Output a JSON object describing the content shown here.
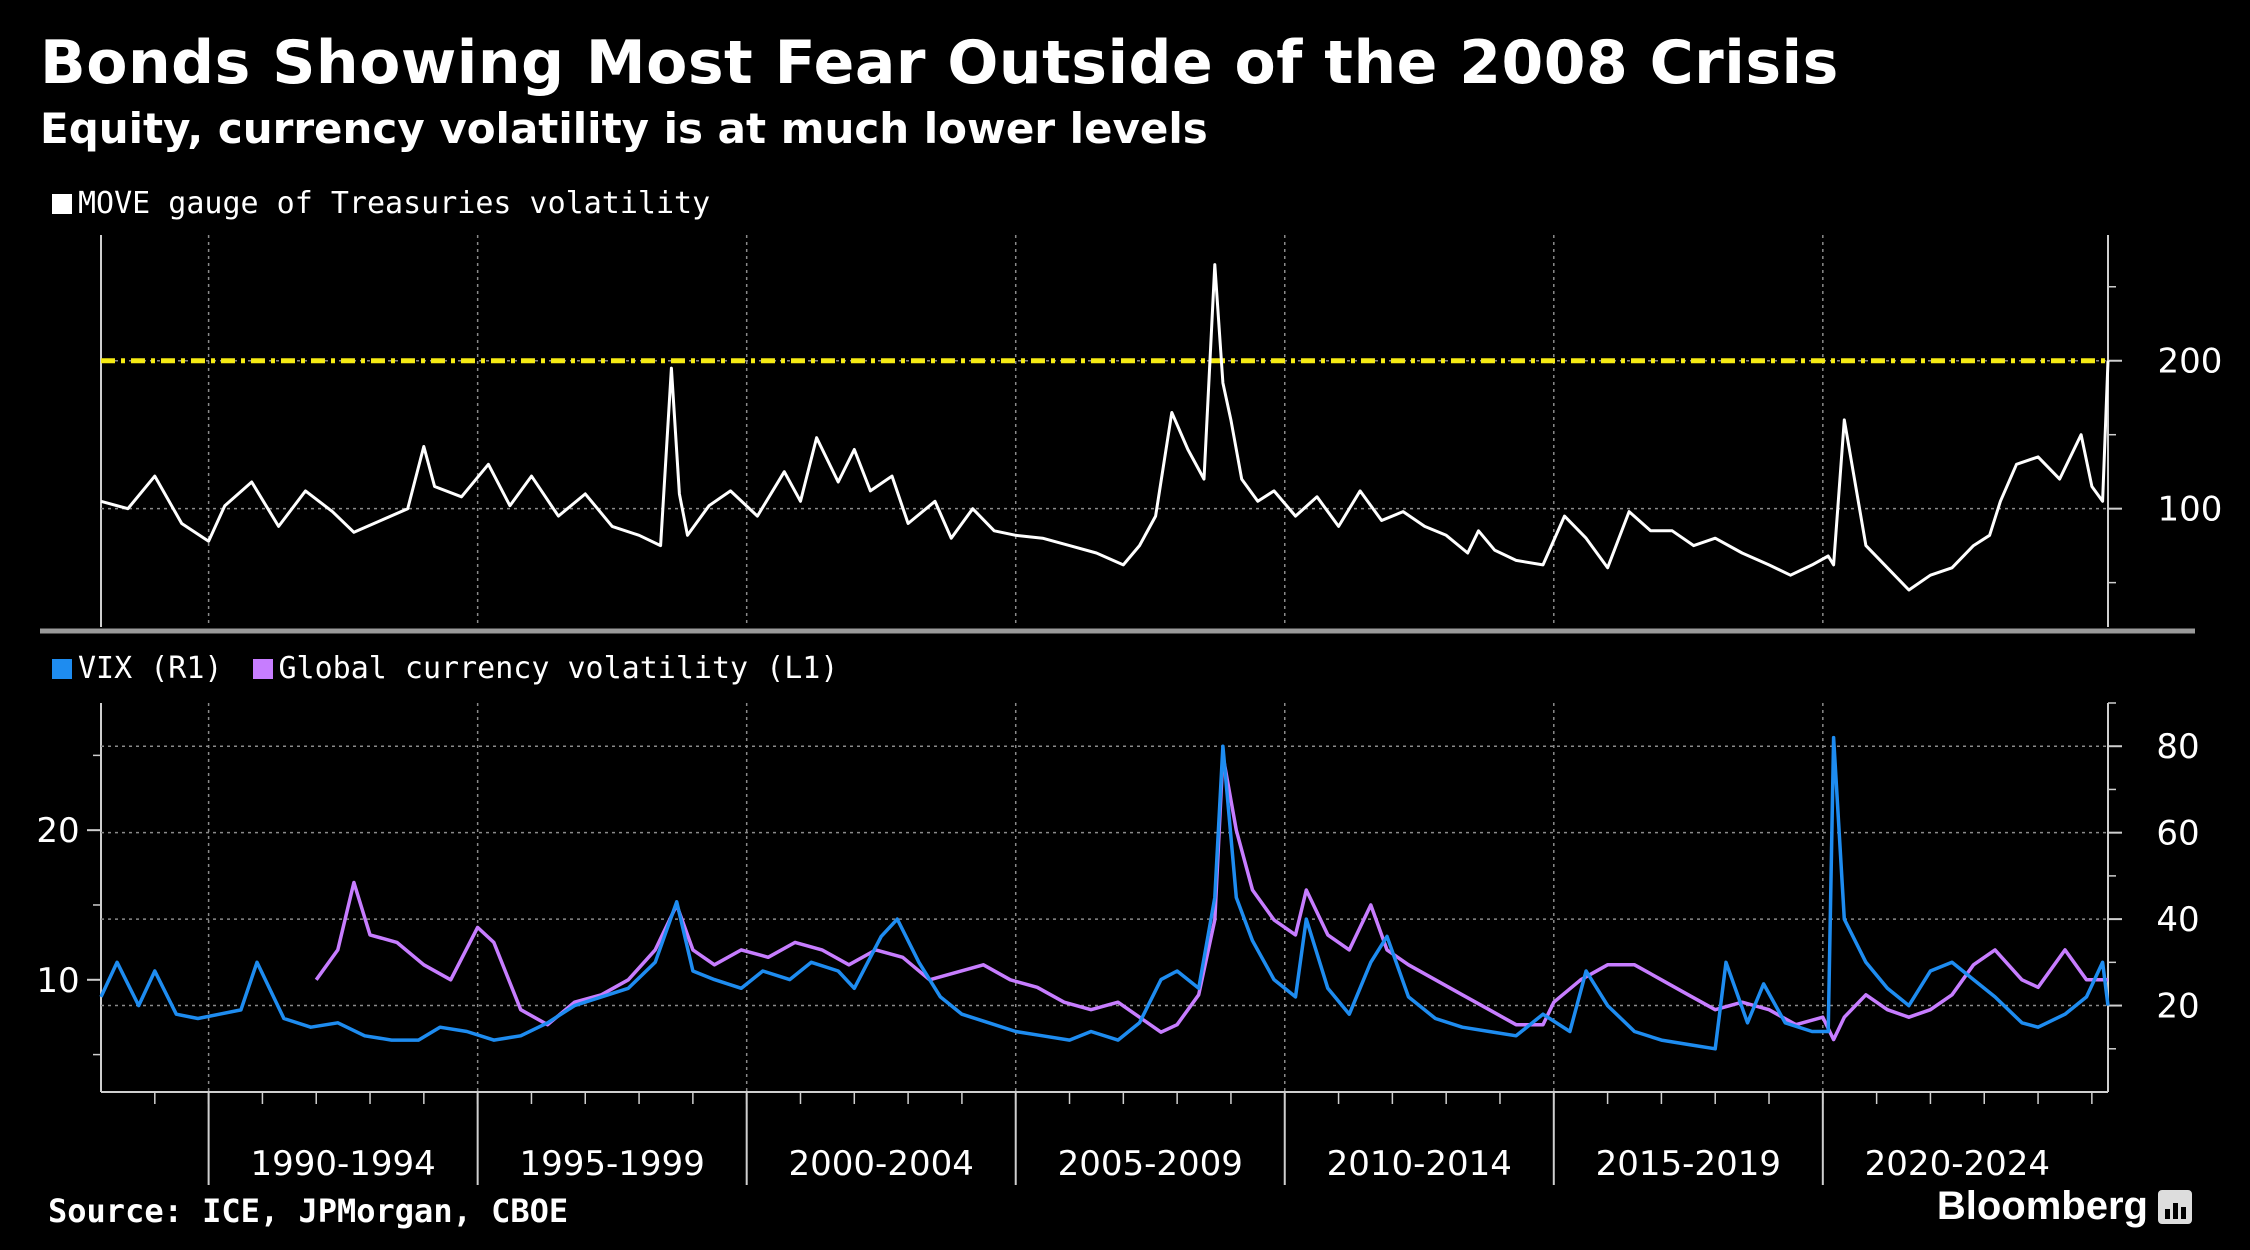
{
  "header": {
    "title": "Bonds Showing Most Fear Outside of the 2008 Crisis",
    "subtitle": "Equity, currency volatility is at much lower levels"
  },
  "footer": {
    "source": "Source: ICE, JPMorgan, CBOE",
    "brand": "Bloomberg"
  },
  "colors": {
    "move": "#ffffff",
    "vix": "#1e8cf0",
    "currency": "#c77dff",
    "threshold": "#f5ea14",
    "grid": "#8a8a8a",
    "background": "#000000"
  },
  "chart_data": [
    {
      "type": "line",
      "panel": "top",
      "legend": [
        "MOVE gauge of Treasuries volatility"
      ],
      "y_axis": {
        "side": "right",
        "ticks": [
          100,
          200
        ],
        "range": [
          20,
          285
        ]
      },
      "x_range": [
        1988.0,
        2025.3
      ],
      "reference_line": {
        "value": 200,
        "color": "#f5ea14",
        "style": "dash-dot"
      },
      "series": [
        {
          "name": "MOVE gauge of Treasuries volatility",
          "color": "#ffffff",
          "x": [
            1988.0,
            1988.5,
            1989.0,
            1989.5,
            1990.0,
            1990.3,
            1990.8,
            1991.3,
            1991.8,
            1992.3,
            1992.7,
            1993.2,
            1993.7,
            1994.0,
            1994.2,
            1994.7,
            1995.2,
            1995.6,
            1996.0,
            1996.5,
            1997.0,
            1997.5,
            1998.0,
            1998.4,
            1998.6,
            1998.75,
            1998.9,
            1999.3,
            1999.7,
            2000.2,
            2000.7,
            2001.0,
            2001.3,
            2001.7,
            2002.0,
            2002.3,
            2002.7,
            2003.0,
            2003.5,
            2003.8,
            2004.2,
            2004.6,
            2005.0,
            2005.5,
            2006.0,
            2006.5,
            2007.0,
            2007.3,
            2007.6,
            2007.9,
            2008.2,
            2008.5,
            2008.7,
            2008.85,
            2009.0,
            2009.2,
            2009.5,
            2009.8,
            2010.2,
            2010.6,
            2011.0,
            2011.4,
            2011.8,
            2012.2,
            2012.6,
            2013.0,
            2013.4,
            2013.6,
            2013.9,
            2014.3,
            2014.8,
            2015.2,
            2015.6,
            2016.0,
            2016.4,
            2016.8,
            2017.2,
            2017.6,
            2018.0,
            2018.5,
            2019.0,
            2019.4,
            2019.8,
            2020.1,
            2020.2,
            2020.4,
            2020.8,
            2021.2,
            2021.6,
            2022.0,
            2022.4,
            2022.8,
            2023.1,
            2023.3,
            2023.6,
            2024.0,
            2024.4,
            2024.8,
            2025.0,
            2025.2,
            2025.3
          ],
          "y": [
            105,
            100,
            122,
            90,
            78,
            102,
            118,
            88,
            112,
            98,
            84,
            92,
            100,
            142,
            115,
            108,
            130,
            102,
            122,
            95,
            110,
            88,
            82,
            75,
            195,
            110,
            82,
            102,
            112,
            95,
            125,
            105,
            148,
            118,
            140,
            112,
            122,
            90,
            105,
            80,
            100,
            85,
            82,
            80,
            75,
            70,
            62,
            75,
            95,
            165,
            140,
            120,
            265,
            185,
            160,
            120,
            105,
            112,
            95,
            108,
            88,
            112,
            92,
            98,
            88,
            82,
            70,
            85,
            72,
            65,
            62,
            95,
            80,
            60,
            98,
            85,
            85,
            75,
            80,
            70,
            62,
            55,
            62,
            68,
            62,
            160,
            75,
            60,
            45,
            55,
            60,
            75,
            82,
            105,
            130,
            135,
            120,
            150,
            115,
            105,
            200
          ]
        }
      ]
    },
    {
      "type": "line",
      "panel": "bottom",
      "legend": [
        "VIX (R1)",
        "Global currency volatility (L1)"
      ],
      "x_ticks": [
        "1990-1994",
        "1995-1999",
        "2000-2004",
        "2005-2009",
        "2010-2014",
        "2015-2019",
        "2020-2024"
      ],
      "x_range": [
        1988.0,
        2025.3
      ],
      "y_axis_left": {
        "ticks": [
          10,
          20
        ],
        "range": [
          2.5,
          28.5
        ]
      },
      "y_axis_right": {
        "ticks": [
          20,
          40,
          60,
          80
        ],
        "range": [
          0,
          90
        ]
      },
      "series": [
        {
          "name": "VIX (R1)",
          "axis": "right",
          "color": "#1e8cf0",
          "x": [
            1988.0,
            1988.3,
            1988.7,
            1989.0,
            1989.4,
            1989.8,
            1990.2,
            1990.6,
            1990.9,
            1991.4,
            1991.9,
            1992.4,
            1992.9,
            1993.4,
            1993.9,
            1994.3,
            1994.8,
            1995.3,
            1995.8,
            1996.3,
            1996.8,
            1997.3,
            1997.8,
            1998.3,
            1998.7,
            1999.0,
            1999.4,
            1999.9,
            2000.3,
            2000.8,
            2001.2,
            2001.7,
            2002.0,
            2002.5,
            2002.8,
            2003.2,
            2003.6,
            2004.0,
            2004.5,
            2005.0,
            2005.5,
            2006.0,
            2006.4,
            2006.9,
            2007.3,
            2007.7,
            2008.0,
            2008.4,
            2008.7,
            2008.85,
            2009.1,
            2009.4,
            2009.8,
            2010.2,
            2010.4,
            2010.8,
            2011.2,
            2011.6,
            2011.9,
            2012.3,
            2012.8,
            2013.3,
            2013.8,
            2014.3,
            2014.8,
            2015.3,
            2015.6,
            2016.0,
            2016.5,
            2017.0,
            2017.5,
            2018.0,
            2018.2,
            2018.6,
            2018.9,
            2019.3,
            2019.8,
            2020.1,
            2020.2,
            2020.4,
            2020.8,
            2021.2,
            2021.6,
            2022.0,
            2022.4,
            2022.8,
            2023.2,
            2023.7,
            2024.0,
            2024.5,
            2024.9,
            2025.2,
            2025.3
          ],
          "y": [
            22,
            30,
            20,
            28,
            18,
            17,
            18,
            19,
            30,
            17,
            15,
            16,
            13,
            12,
            12,
            15,
            14,
            12,
            13,
            16,
            20,
            22,
            24,
            30,
            44,
            28,
            26,
            24,
            28,
            26,
            30,
            28,
            24,
            36,
            40,
            30,
            22,
            18,
            16,
            14,
            13,
            12,
            14,
            12,
            16,
            26,
            28,
            24,
            45,
            80,
            45,
            35,
            26,
            22,
            40,
            24,
            18,
            30,
            36,
            22,
            17,
            15,
            14,
            13,
            18,
            14,
            28,
            20,
            14,
            12,
            11,
            10,
            30,
            16,
            25,
            16,
            14,
            14,
            82,
            40,
            30,
            24,
            20,
            28,
            30,
            26,
            22,
            16,
            15,
            18,
            22,
            30,
            20
          ]
        },
        {
          "name": "Global currency volatility (L1)",
          "axis": "left",
          "color": "#c77dff",
          "x": [
            1992.0,
            1992.4,
            1992.7,
            1993.0,
            1993.5,
            1994.0,
            1994.5,
            1995.0,
            1995.3,
            1995.8,
            1996.3,
            1996.8,
            1997.3,
            1997.8,
            1998.3,
            1998.7,
            1999.0,
            1999.4,
            1999.9,
            2000.4,
            2000.9,
            2001.4,
            2001.9,
            2002.4,
            2002.9,
            2003.4,
            2003.9,
            2004.4,
            2004.9,
            2005.4,
            2005.9,
            2006.4,
            2006.9,
            2007.3,
            2007.7,
            2008.0,
            2008.4,
            2008.7,
            2008.85,
            2009.1,
            2009.4,
            2009.8,
            2010.2,
            2010.4,
            2010.8,
            2011.2,
            2011.6,
            2011.9,
            2012.3,
            2012.8,
            2013.3,
            2013.8,
            2014.3,
            2014.8,
            2015.0,
            2015.5,
            2016.0,
            2016.5,
            2017.0,
            2017.5,
            2018.0,
            2018.5,
            2019.0,
            2019.5,
            2020.0,
            2020.2,
            2020.4,
            2020.8,
            2021.2,
            2021.6,
            2022.0,
            2022.4,
            2022.8,
            2023.2,
            2023.7,
            2024.0,
            2024.5,
            2024.9,
            2025.2,
            2025.3
          ],
          "y": [
            10,
            12,
            16.5,
            13,
            12.5,
            11,
            10,
            13.5,
            12.5,
            8,
            7,
            8.5,
            9,
            10,
            12,
            15,
            12,
            11,
            12,
            11.5,
            12.5,
            12,
            11,
            12,
            11.5,
            10,
            10.5,
            11,
            10,
            9.5,
            8.5,
            8,
            8.5,
            7.5,
            6.5,
            7,
            9,
            14,
            25,
            20,
            16,
            14,
            13,
            16,
            13,
            12,
            15,
            12,
            11,
            10,
            9,
            8,
            7,
            7,
            8.5,
            10,
            11,
            11,
            10,
            9,
            8,
            8.5,
            8,
            7,
            7.5,
            6,
            7.5,
            9,
            8,
            7.5,
            8,
            9,
            11,
            12,
            10,
            9.5,
            12,
            10,
            10,
            10
          ]
        }
      ]
    }
  ]
}
